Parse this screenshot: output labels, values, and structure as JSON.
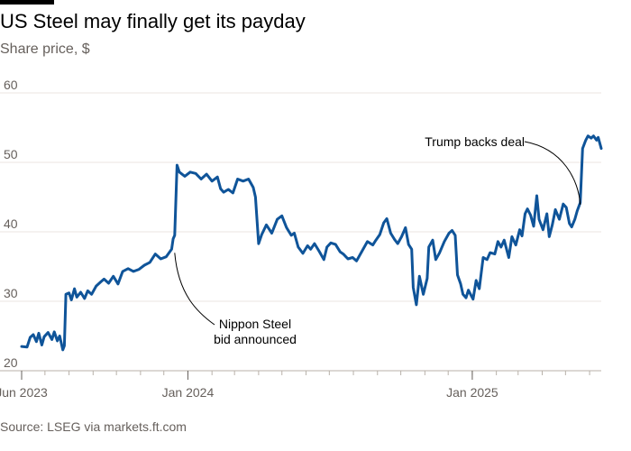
{
  "title": "US Steel may finally get its payday",
  "subtitle": "Share price, $",
  "source": "Source: LSEG via markets.ft.com",
  "chart_data": {
    "type": "line",
    "title": "US Steel may finally get its payday",
    "ylabel": "Share price, $",
    "ylim": [
      20,
      60
    ],
    "yticks": [
      20,
      30,
      40,
      50,
      60
    ],
    "xlim": [
      "2023-06-01",
      "2025-06-16"
    ],
    "xticks": [
      {
        "date": "2023-06-01",
        "label": "Jun 2023"
      },
      {
        "date": "2024-01-01",
        "label": "Jan 2024"
      },
      {
        "date": "2025-01-01",
        "label": "Jan 2025"
      }
    ],
    "grid": true,
    "line_color": "#0f5499",
    "series": [
      {
        "points": [
          [
            "2023-06-01",
            23.5
          ],
          [
            "2023-06-08",
            23.4
          ],
          [
            "2023-06-12",
            24.8
          ],
          [
            "2023-06-16",
            25.2
          ],
          [
            "2023-06-20",
            24.2
          ],
          [
            "2023-06-23",
            25.4
          ],
          [
            "2023-06-27",
            23.7
          ],
          [
            "2023-06-30",
            24.9
          ],
          [
            "2023-07-05",
            25.5
          ],
          [
            "2023-07-10",
            24.5
          ],
          [
            "2023-07-13",
            25.6
          ],
          [
            "2023-07-17",
            24.3
          ],
          [
            "2023-07-20",
            25.0
          ],
          [
            "2023-07-24",
            23.0
          ],
          [
            "2023-07-26",
            23.6
          ],
          [
            "2023-07-28",
            31.0
          ],
          [
            "2023-08-01",
            31.2
          ],
          [
            "2023-08-04",
            30.2
          ],
          [
            "2023-08-08",
            31.8
          ],
          [
            "2023-08-11",
            30.6
          ],
          [
            "2023-08-16",
            31.3
          ],
          [
            "2023-08-21",
            30.4
          ],
          [
            "2023-08-25",
            31.5
          ],
          [
            "2023-08-30",
            31.0
          ],
          [
            "2023-09-05",
            32.2
          ],
          [
            "2023-09-11",
            32.8
          ],
          [
            "2023-09-15",
            33.2
          ],
          [
            "2023-09-21",
            32.6
          ],
          [
            "2023-09-27",
            33.6
          ],
          [
            "2023-10-03",
            32.5
          ],
          [
            "2023-10-09",
            34.3
          ],
          [
            "2023-10-16",
            34.7
          ],
          [
            "2023-10-23",
            34.3
          ],
          [
            "2023-10-30",
            34.6
          ],
          [
            "2023-11-06",
            35.2
          ],
          [
            "2023-11-13",
            35.6
          ],
          [
            "2023-11-20",
            36.8
          ],
          [
            "2023-11-27",
            36.1
          ],
          [
            "2023-12-04",
            36.4
          ],
          [
            "2023-12-11",
            37.5
          ],
          [
            "2023-12-13",
            39.0
          ],
          [
            "2023-12-15",
            39.5
          ],
          [
            "2023-12-18",
            49.6
          ],
          [
            "2023-12-21",
            48.6
          ],
          [
            "2023-12-28",
            48.0
          ],
          [
            "2024-01-04",
            48.6
          ],
          [
            "2024-01-11",
            48.4
          ],
          [
            "2024-01-18",
            47.6
          ],
          [
            "2024-01-25",
            48.3
          ],
          [
            "2024-02-01",
            47.3
          ],
          [
            "2024-02-08",
            47.9
          ],
          [
            "2024-02-12",
            46.2
          ],
          [
            "2024-02-16",
            45.7
          ],
          [
            "2024-02-22",
            46.1
          ],
          [
            "2024-02-28",
            45.6
          ],
          [
            "2024-03-05",
            47.6
          ],
          [
            "2024-03-12",
            47.3
          ],
          [
            "2024-03-19",
            47.6
          ],
          [
            "2024-03-25",
            46.4
          ],
          [
            "2024-03-28",
            45.0
          ],
          [
            "2024-04-01",
            38.3
          ],
          [
            "2024-04-05",
            39.6
          ],
          [
            "2024-04-11",
            41.0
          ],
          [
            "2024-04-18",
            39.8
          ],
          [
            "2024-04-25",
            41.8
          ],
          [
            "2024-05-01",
            42.3
          ],
          [
            "2024-05-07",
            40.6
          ],
          [
            "2024-05-13",
            39.5
          ],
          [
            "2024-05-17",
            39.8
          ],
          [
            "2024-05-22",
            37.8
          ],
          [
            "2024-05-28",
            36.9
          ],
          [
            "2024-06-03",
            38.0
          ],
          [
            "2024-06-07",
            37.5
          ],
          [
            "2024-06-12",
            38.3
          ],
          [
            "2024-06-18",
            37.2
          ],
          [
            "2024-06-24",
            36.0
          ],
          [
            "2024-06-28",
            37.8
          ],
          [
            "2024-07-03",
            38.4
          ],
          [
            "2024-07-09",
            38.2
          ],
          [
            "2024-07-15",
            37.1
          ],
          [
            "2024-07-19",
            36.8
          ],
          [
            "2024-07-25",
            36.1
          ],
          [
            "2024-07-31",
            36.3
          ],
          [
            "2024-08-05",
            35.8
          ],
          [
            "2024-08-12",
            37.2
          ],
          [
            "2024-08-19",
            38.6
          ],
          [
            "2024-08-26",
            38.1
          ],
          [
            "2024-08-30",
            38.8
          ],
          [
            "2024-09-04",
            39.6
          ],
          [
            "2024-09-09",
            41.3
          ],
          [
            "2024-09-13",
            41.9
          ],
          [
            "2024-09-18",
            39.8
          ],
          [
            "2024-09-23",
            38.9
          ],
          [
            "2024-09-27",
            38.3
          ],
          [
            "2024-10-02",
            39.3
          ],
          [
            "2024-10-07",
            40.6
          ],
          [
            "2024-10-11",
            38.2
          ],
          [
            "2024-10-15",
            37.5
          ],
          [
            "2024-10-17",
            32.0
          ],
          [
            "2024-10-21",
            29.5
          ],
          [
            "2024-10-25",
            33.6
          ],
          [
            "2024-10-30",
            31.0
          ],
          [
            "2024-11-04",
            33.3
          ],
          [
            "2024-11-06",
            37.8
          ],
          [
            "2024-11-11",
            38.8
          ],
          [
            "2024-11-15",
            36.0
          ],
          [
            "2024-11-20",
            37.0
          ],
          [
            "2024-11-26",
            38.6
          ],
          [
            "2024-12-02",
            39.8
          ],
          [
            "2024-12-06",
            40.2
          ],
          [
            "2024-12-10",
            39.5
          ],
          [
            "2024-12-13",
            33.8
          ],
          [
            "2024-12-17",
            32.5
          ],
          [
            "2024-12-20",
            31.0
          ],
          [
            "2024-12-24",
            30.5
          ],
          [
            "2024-12-27",
            31.6
          ],
          [
            "2025-01-02",
            30.3
          ],
          [
            "2025-01-06",
            33.0
          ],
          [
            "2025-01-10",
            31.8
          ],
          [
            "2025-01-15",
            36.3
          ],
          [
            "2025-01-20",
            36.0
          ],
          [
            "2025-01-24",
            37.0
          ],
          [
            "2025-01-30",
            36.8
          ],
          [
            "2025-02-03",
            38.6
          ],
          [
            "2025-02-07",
            37.8
          ],
          [
            "2025-02-11",
            38.8
          ],
          [
            "2025-02-17",
            36.3
          ],
          [
            "2025-02-21",
            39.3
          ],
          [
            "2025-02-26",
            38.1
          ],
          [
            "2025-03-03",
            40.3
          ],
          [
            "2025-03-06",
            39.4
          ],
          [
            "2025-03-10",
            42.6
          ],
          [
            "2025-03-13",
            43.3
          ],
          [
            "2025-03-17",
            42.4
          ],
          [
            "2025-03-21",
            40.8
          ],
          [
            "2025-03-25",
            45.2
          ],
          [
            "2025-03-28",
            41.8
          ],
          [
            "2025-04-02",
            40.3
          ],
          [
            "2025-04-07",
            42.6
          ],
          [
            "2025-04-10",
            39.3
          ],
          [
            "2025-04-14",
            41.0
          ],
          [
            "2025-04-18",
            43.2
          ],
          [
            "2025-04-23",
            41.8
          ],
          [
            "2025-04-28",
            44.0
          ],
          [
            "2025-05-02",
            43.5
          ],
          [
            "2025-05-06",
            41.2
          ],
          [
            "2025-05-09",
            40.7
          ],
          [
            "2025-05-13",
            41.8
          ],
          [
            "2025-05-16",
            43.0
          ],
          [
            "2025-05-20",
            44.2
          ],
          [
            "2025-05-23",
            52.0
          ],
          [
            "2025-05-27",
            53.2
          ],
          [
            "2025-05-30",
            53.8
          ],
          [
            "2025-06-03",
            53.5
          ],
          [
            "2025-06-06",
            53.8
          ],
          [
            "2025-06-10",
            53.2
          ],
          [
            "2025-06-12",
            53.6
          ],
          [
            "2025-06-16",
            52.0
          ]
        ]
      }
    ],
    "annotations": [
      {
        "lines": [
          "Nippon Steel",
          "bid announced"
        ],
        "date": "2023-12-15",
        "value": 37.5
      },
      {
        "lines": [
          "Trump backs deal"
        ],
        "date": "2025-05-20",
        "value": 43.5
      }
    ]
  }
}
